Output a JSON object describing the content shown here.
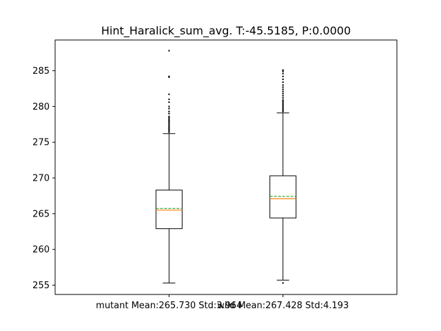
{
  "chart_data": {
    "type": "box",
    "title": "Hint_Haralick_sum_avg. T:-45.5185, P:0.0000",
    "xlabel": "",
    "ylabel": "",
    "ylim": [
      253.7,
      289.3
    ],
    "yticks": [
      255,
      260,
      265,
      270,
      275,
      280,
      285
    ],
    "grid": false,
    "categories": [
      "mutant Mean:265.730 Std:3.964",
      "wild Mean:267.428 Std:4.193"
    ],
    "boxes": [
      {
        "label": "mutant Mean:265.730 Std:3.964",
        "whisker_low": 255.3,
        "q1": 262.9,
        "median": 265.5,
        "mean": 265.73,
        "q3": 268.3,
        "whisker_high": 276.2,
        "outliers": [
          276.4,
          276.6,
          276.8,
          277.0,
          277.2,
          277.4,
          277.6,
          277.8,
          278.0,
          278.2,
          278.4,
          278.6,
          279.0,
          279.3,
          279.7,
          280.0,
          280.6,
          281.0,
          281.7,
          284.1,
          284.2,
          287.8
        ]
      },
      {
        "label": "wild Mean:267.428 Std:4.193",
        "whisker_low": 255.7,
        "q1": 264.4,
        "median": 267.1,
        "mean": 267.43,
        "q3": 270.3,
        "whisker_high": 279.1,
        "outliers": [
          255.3,
          279.3,
          279.5,
          279.7,
          279.9,
          280.1,
          280.3,
          280.5,
          280.7,
          280.9,
          281.2,
          281.5,
          281.8,
          282.1,
          282.4,
          282.7,
          283.0,
          283.4,
          283.8,
          284.2,
          284.6,
          284.9,
          285.1
        ]
      }
    ],
    "colors": {
      "box": "#000000",
      "median": "#ff7f0e",
      "mean": "#2ca02c",
      "outlier": "#000000"
    }
  }
}
